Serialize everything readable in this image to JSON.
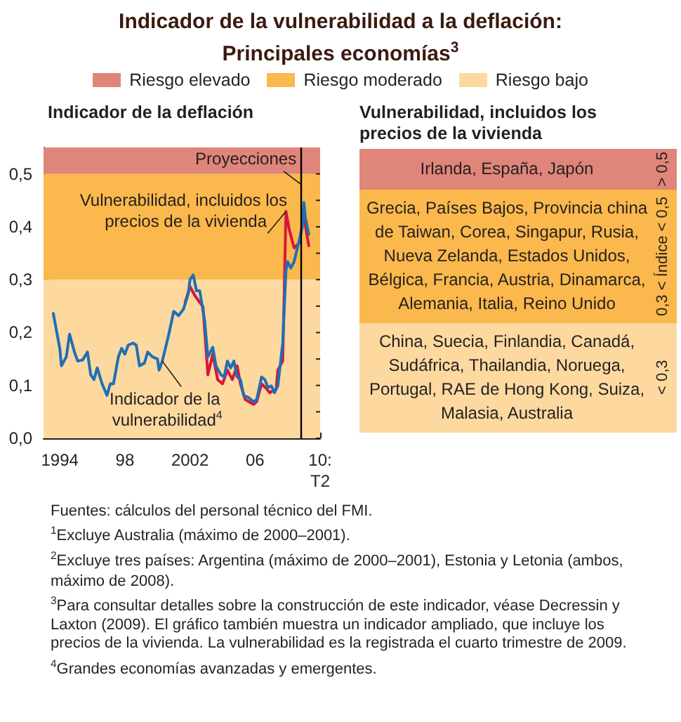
{
  "chart_data": [
    {
      "type": "line",
      "title": "Indicador de la vulnerabilidad a la deflación: Principales economías$^{3}$",
      "subtitle": "Indicador de la deflación",
      "series": [
        {
          "name": "Vulnerabilidad, incluidos los precios de la vivienda",
          "color": "#d6173a",
          "x": [
            2001.7,
            2002.0,
            2002.3,
            2002.6,
            2002.8,
            2003.1,
            2003.4,
            2003.7,
            2004.0,
            2004.3,
            2004.6,
            2004.9,
            2005.1,
            2005.4,
            2005.9,
            2006.1,
            2006.4,
            2006.7,
            2006.9,
            2007.3,
            2007.4,
            2007.7,
            2007.9,
            2008.1,
            2008.4,
            2008.7,
            2009.0,
            2009.3
          ],
          "values": [
            0.257,
            0.287,
            0.27,
            0.257,
            0.249,
            0.12,
            0.159,
            0.111,
            0.103,
            0.129,
            0.111,
            0.137,
            0.103,
            0.073,
            0.064,
            0.069,
            0.103,
            0.094,
            0.086,
            0.094,
            0.129,
            0.146,
            0.429,
            0.395,
            0.36,
            0.369,
            0.42,
            0.364
          ]
        },
        {
          "name": "Indicador de la vulnerabilidad$^{4}$",
          "color": "#1f6fb5",
          "x": [
            1993.6,
            1994.0,
            1994.1,
            1994.4,
            1994.6,
            1994.9,
            1995.1,
            1995.4,
            1995.7,
            1995.9,
            1996.1,
            1996.3,
            1996.6,
            1996.9,
            1997.1,
            1997.3,
            1997.6,
            1997.8,
            1998.0,
            1998.2,
            1998.5,
            1998.7,
            1998.9,
            1999.2,
            1999.4,
            1999.7,
            2000.0,
            2000.1,
            2000.3,
            2000.7,
            2001.0,
            2001.3,
            2001.6,
            2001.9,
            2002.0,
            2002.2,
            2002.4,
            2002.6,
            2002.9,
            2003.1,
            2003.4,
            2003.6,
            2003.9,
            2004.1,
            2004.3,
            2004.5,
            2004.7,
            2004.9,
            2005.1,
            2005.3,
            2005.6,
            2005.9,
            2006.1,
            2006.4,
            2006.6,
            2006.8,
            2007.0,
            2007.2,
            2007.4,
            2007.7,
            2007.9,
            2008.0,
            2008.2,
            2008.4,
            2008.6,
            2008.9,
            2009.0,
            2009.1,
            2009.3
          ],
          "values": [
            0.236,
            0.17,
            0.137,
            0.154,
            0.197,
            0.163,
            0.146,
            0.148,
            0.163,
            0.12,
            0.111,
            0.133,
            0.103,
            0.081,
            0.103,
            0.103,
            0.154,
            0.17,
            0.159,
            0.176,
            0.18,
            0.176,
            0.137,
            0.142,
            0.163,
            0.154,
            0.15,
            0.129,
            0.146,
            0.197,
            0.24,
            0.232,
            0.244,
            0.274,
            0.3,
            0.309,
            0.279,
            0.279,
            0.223,
            0.154,
            0.172,
            0.137,
            0.12,
            0.116,
            0.146,
            0.133,
            0.146,
            0.116,
            0.111,
            0.081,
            0.077,
            0.069,
            0.073,
            0.116,
            0.111,
            0.096,
            0.099,
            0.086,
            0.099,
            0.18,
            0.317,
            0.334,
            0.322,
            0.334,
            0.36,
            0.399,
            0.446,
            0.416,
            0.386
          ]
        }
      ],
      "xlim": [
        1993,
        2010
      ],
      "xticks": [
        {
          "value": 1994,
          "label": "1994"
        },
        {
          "value": 1998,
          "label": "98"
        },
        {
          "value": 2002,
          "label": "2002"
        },
        {
          "value": 2006,
          "label": "06"
        },
        {
          "value": 2010,
          "label": "10:\nT2"
        }
      ],
      "ylim": [
        0,
        0.55
      ],
      "yticks": [
        {
          "value": 0,
          "label": "0,0"
        },
        {
          "value": 0.1,
          "label": "0,1"
        },
        {
          "value": 0.2,
          "label": "0,2"
        },
        {
          "value": 0.3,
          "label": "0,3"
        },
        {
          "value": 0.4,
          "label": "0,4"
        },
        {
          "value": 0.5,
          "label": "0,5"
        }
      ],
      "bands": [
        {
          "axis": "y",
          "from": 0.5,
          "to": 0.55,
          "label": "Riesgo elevado",
          "color": "#e0857a"
        },
        {
          "axis": "y",
          "from": 0.3,
          "to": 0.5,
          "label": "Riesgo moderado",
          "color": "#fbb84c"
        },
        {
          "axis": "y",
          "from": 0,
          "to": 0.3,
          "label": "Riesgo bajo",
          "color": "#fdd9a0"
        }
      ],
      "ref_lines": [
        {
          "axis": "x",
          "value": 2008.8,
          "label": "Proyecciones",
          "color": "#000000"
        }
      ],
      "legend": "top",
      "grid": false,
      "marker": "none",
      "line_style": "solid",
      "annotations": [
        "Fuentes: cálculos del personal técnico del FMI.",
        "$^{1}$Excluye Australia (máximo de 2000–2001).",
        "$^{2}$Excluye tres países: Argentina (máximo de 2000–2001), Estonia y Letonia (ambos, máximo de 2008).",
        "$^{3}$Para consultar detalles sobre la construcción de este indicador, véase Decressin y Laxton (2009). El gráfico también muestra un indicador ampliado, que incluye los precios de la vivienda. La vulnerabilidad es la registrada el cuarto trimestre de 2009.",
        "$^{4}$Grandes economías avanzadas y emergentes."
      ]
    },
    {
      "type": "other",
      "title": "Vulnerabilidad, incluidos los precios de la vivienda",
      "colors": [
        "#e0857a",
        "#fbb84c",
        "#fdd9a0"
      ],
      "annotations": [
        "Irlanda, España, Japón",
        "> 0,5",
        "Grecia, Países Bajos, Provincia china de Taiwan, Corea, Singapur, Rusia, Nueva Zelanda, Estados Unidos, Bélgica, Francia, Austria, Dinamarca, Alemania, Italia, Reino Unido",
        "0,3 < Índice < 0,5",
        "China, Suecia, Finlandia, Canadá, Sudáfrica, Thailandia, Noruega, Portugal, RAE de Hong Kong, Suiza, Malasia, Australia",
        "< 0,3"
      ]
    }
  ]
}
